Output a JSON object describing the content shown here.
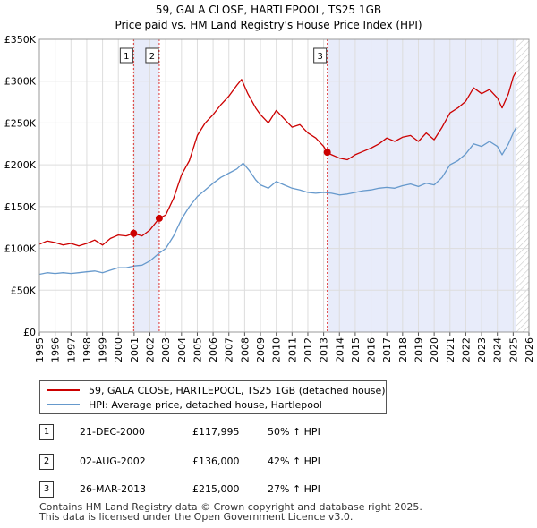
{
  "header": {
    "title": "59, GALA CLOSE, HARTLEPOOL, TS25 1GB",
    "subtitle": "Price paid vs. HM Land Registry's House Price Index (HPI)"
  },
  "colors": {
    "property": "#cc0000",
    "hpi": "#6699cc",
    "shade": "#e8ecfa",
    "grid": "#dddddd",
    "hatch": "#cccccc"
  },
  "chart_data": {
    "type": "line",
    "title": "59, GALA CLOSE, HARTLEPOOL, TS25 1GB",
    "xlabel": "",
    "ylabel": "",
    "xlim": [
      1995,
      2026
    ],
    "ylim": [
      0,
      350000
    ],
    "y_ticks": [
      {
        "value": 0,
        "label": "£0"
      },
      {
        "value": 50000,
        "label": "£50K"
      },
      {
        "value": 100000,
        "label": "£100K"
      },
      {
        "value": 150000,
        "label": "£150K"
      },
      {
        "value": 200000,
        "label": "£200K"
      },
      {
        "value": 250000,
        "label": "£250K"
      },
      {
        "value": 300000,
        "label": "£300K"
      },
      {
        "value": 350000,
        "label": "£350K"
      }
    ],
    "x_ticks": [
      "1995",
      "1996",
      "1997",
      "1998",
      "1999",
      "2000",
      "2001",
      "2002",
      "2003",
      "2004",
      "2005",
      "2006",
      "2007",
      "2008",
      "2009",
      "2010",
      "2011",
      "2012",
      "2013",
      "2014",
      "2015",
      "2016",
      "2017",
      "2018",
      "2019",
      "2020",
      "2021",
      "2022",
      "2023",
      "2024",
      "2025",
      "2026"
    ],
    "series": [
      {
        "name": "59, GALA CLOSE, HARTLEPOOL, TS25 1GB (detached house)",
        "color": "#cc0000",
        "points": [
          [
            1995.0,
            105000
          ],
          [
            1995.5,
            109000
          ],
          [
            1996.0,
            107000
          ],
          [
            1996.5,
            104000
          ],
          [
            1997.0,
            106000
          ],
          [
            1997.5,
            103000
          ],
          [
            1998.0,
            106000
          ],
          [
            1998.5,
            110000
          ],
          [
            1999.0,
            104000
          ],
          [
            1999.5,
            112000
          ],
          [
            2000.0,
            116000
          ],
          [
            2000.5,
            115000
          ],
          [
            2000.97,
            117995
          ],
          [
            2001.5,
            115000
          ],
          [
            2002.0,
            122000
          ],
          [
            2002.59,
            136000
          ],
          [
            2003.0,
            140000
          ],
          [
            2003.5,
            160000
          ],
          [
            2004.0,
            188000
          ],
          [
            2004.5,
            205000
          ],
          [
            2005.0,
            235000
          ],
          [
            2005.5,
            250000
          ],
          [
            2006.0,
            260000
          ],
          [
            2006.5,
            272000
          ],
          [
            2007.0,
            282000
          ],
          [
            2007.5,
            295000
          ],
          [
            2007.8,
            302000
          ],
          [
            2008.2,
            285000
          ],
          [
            2008.7,
            268000
          ],
          [
            2009.0,
            260000
          ],
          [
            2009.5,
            250000
          ],
          [
            2010.0,
            265000
          ],
          [
            2010.5,
            255000
          ],
          [
            2011.0,
            245000
          ],
          [
            2011.5,
            248000
          ],
          [
            2012.0,
            238000
          ],
          [
            2012.5,
            232000
          ],
          [
            2013.0,
            222000
          ],
          [
            2013.23,
            215000
          ],
          [
            2013.5,
            212000
          ],
          [
            2014.0,
            208000
          ],
          [
            2014.5,
            206000
          ],
          [
            2015.0,
            212000
          ],
          [
            2015.5,
            216000
          ],
          [
            2016.0,
            220000
          ],
          [
            2016.5,
            225000
          ],
          [
            2017.0,
            232000
          ],
          [
            2017.5,
            228000
          ],
          [
            2018.0,
            233000
          ],
          [
            2018.5,
            235000
          ],
          [
            2019.0,
            228000
          ],
          [
            2019.5,
            238000
          ],
          [
            2020.0,
            230000
          ],
          [
            2020.5,
            245000
          ],
          [
            2021.0,
            262000
          ],
          [
            2021.5,
            268000
          ],
          [
            2022.0,
            276000
          ],
          [
            2022.5,
            292000
          ],
          [
            2023.0,
            285000
          ],
          [
            2023.5,
            290000
          ],
          [
            2024.0,
            280000
          ],
          [
            2024.3,
            268000
          ],
          [
            2024.7,
            285000
          ],
          [
            2025.0,
            305000
          ],
          [
            2025.2,
            312000
          ]
        ]
      },
      {
        "name": "HPI: Average price, detached house, Hartlepool",
        "color": "#6699cc",
        "points": [
          [
            1995.0,
            69000
          ],
          [
            1995.5,
            71000
          ],
          [
            1996.0,
            70000
          ],
          [
            1996.5,
            71000
          ],
          [
            1997.0,
            70000
          ],
          [
            1997.5,
            71000
          ],
          [
            1998.0,
            72000
          ],
          [
            1998.5,
            73000
          ],
          [
            1999.0,
            71000
          ],
          [
            1999.5,
            74000
          ],
          [
            2000.0,
            77000
          ],
          [
            2000.5,
            77000
          ],
          [
            2001.0,
            79000
          ],
          [
            2001.5,
            80000
          ],
          [
            2002.0,
            85000
          ],
          [
            2002.5,
            93000
          ],
          [
            2003.0,
            100000
          ],
          [
            2003.5,
            115000
          ],
          [
            2004.0,
            135000
          ],
          [
            2004.5,
            150000
          ],
          [
            2005.0,
            162000
          ],
          [
            2005.5,
            170000
          ],
          [
            2006.0,
            178000
          ],
          [
            2006.5,
            185000
          ],
          [
            2007.0,
            190000
          ],
          [
            2007.5,
            195000
          ],
          [
            2007.9,
            202000
          ],
          [
            2008.3,
            193000
          ],
          [
            2008.7,
            182000
          ],
          [
            2009.0,
            176000
          ],
          [
            2009.5,
            172000
          ],
          [
            2010.0,
            180000
          ],
          [
            2010.5,
            176000
          ],
          [
            2011.0,
            172000
          ],
          [
            2011.5,
            170000
          ],
          [
            2012.0,
            167000
          ],
          [
            2012.5,
            166000
          ],
          [
            2013.0,
            167000
          ],
          [
            2013.5,
            166000
          ],
          [
            2014.0,
            164000
          ],
          [
            2014.5,
            165000
          ],
          [
            2015.0,
            167000
          ],
          [
            2015.5,
            169000
          ],
          [
            2016.0,
            170000
          ],
          [
            2016.5,
            172000
          ],
          [
            2017.0,
            173000
          ],
          [
            2017.5,
            172000
          ],
          [
            2018.0,
            175000
          ],
          [
            2018.5,
            177000
          ],
          [
            2019.0,
            174000
          ],
          [
            2019.5,
            178000
          ],
          [
            2020.0,
            176000
          ],
          [
            2020.5,
            185000
          ],
          [
            2021.0,
            200000
          ],
          [
            2021.5,
            205000
          ],
          [
            2022.0,
            213000
          ],
          [
            2022.5,
            225000
          ],
          [
            2023.0,
            222000
          ],
          [
            2023.5,
            228000
          ],
          [
            2024.0,
            222000
          ],
          [
            2024.3,
            212000
          ],
          [
            2024.7,
            225000
          ],
          [
            2025.0,
            238000
          ],
          [
            2025.2,
            245000
          ]
        ]
      }
    ],
    "sales": [
      {
        "num": "1",
        "x": 2000.97,
        "price": 117995
      },
      {
        "num": "2",
        "x": 2002.59,
        "price": 136000
      },
      {
        "num": "3",
        "x": 2013.23,
        "price": 215000
      }
    ],
    "shaded_ranges": [
      [
        2000.97,
        2002.59
      ],
      [
        2013.23,
        2025.2
      ]
    ],
    "hatched_from": 2025.2,
    "legend_position": "bottom"
  },
  "legend": {
    "property": "59, GALA CLOSE, HARTLEPOOL, TS25 1GB (detached house)",
    "hpi": "HPI: Average price, detached house, Hartlepool"
  },
  "sales_table": [
    {
      "num": "1",
      "date": "21-DEC-2000",
      "price": "£117,995",
      "hpi": "50% ↑ HPI"
    },
    {
      "num": "2",
      "date": "02-AUG-2002",
      "price": "£136,000",
      "hpi": "42% ↑ HPI"
    },
    {
      "num": "3",
      "date": "26-MAR-2013",
      "price": "£215,000",
      "hpi": "27% ↑ HPI"
    }
  ],
  "footer": {
    "line1": "Contains HM Land Registry data © Crown copyright and database right 2025.",
    "line2": "This data is licensed under the Open Government Licence v3.0."
  }
}
